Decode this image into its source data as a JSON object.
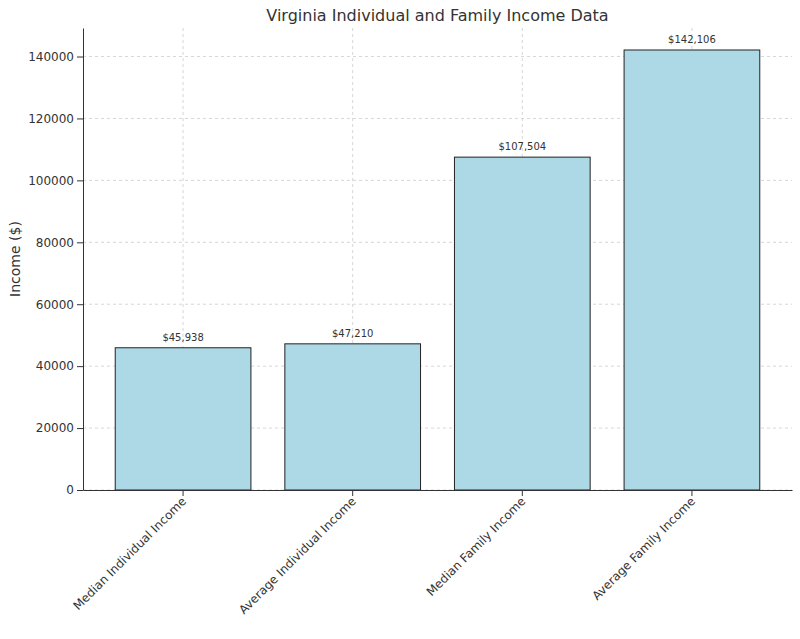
{
  "chart_data": {
    "type": "bar",
    "title": "Virginia Individual and Family Income Data",
    "y_label": "Income ($)",
    "categories": [
      "Median Individual Income",
      "Average Individual Income",
      "Median Family Income",
      "Average Family Income"
    ],
    "values": [
      45938,
      47210,
      107504,
      142106
    ],
    "value_labels": [
      "$45,938",
      "$47,210",
      "$107,504",
      "$142,106"
    ],
    "data_labels": true,
    "color": "#add8e6",
    "ylim": [
      0,
      149211
    ],
    "yticks": [
      0,
      20000,
      40000,
      60000,
      80000,
      100000,
      120000,
      140000
    ],
    "grid": true
  }
}
